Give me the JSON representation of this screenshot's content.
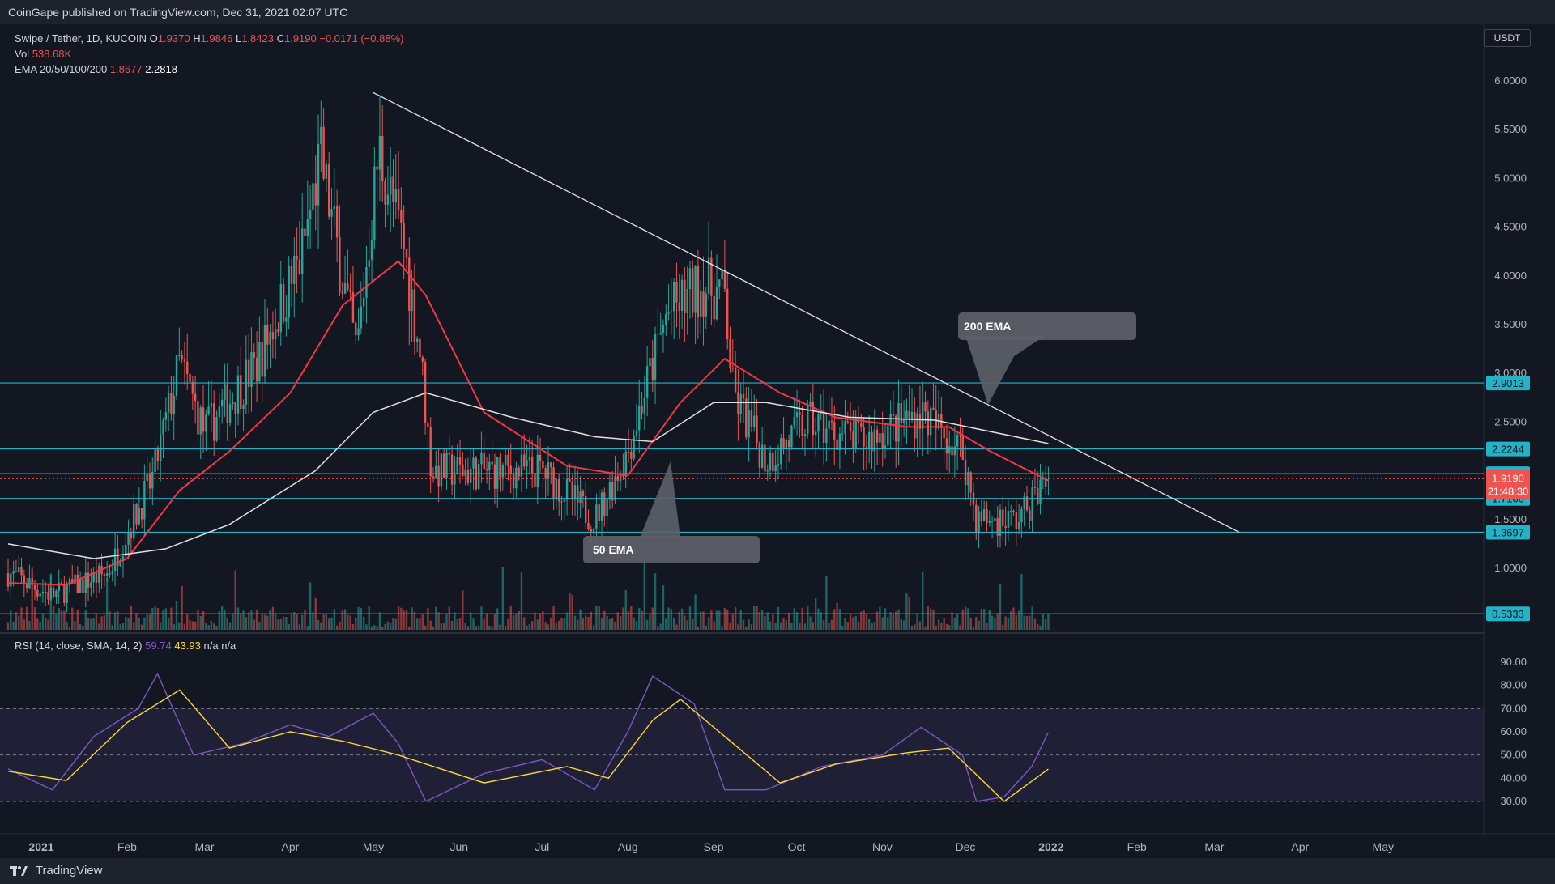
{
  "header": {
    "published": "CoinGape published on TradingView.com, Dec 31, 2021 02:07 UTC"
  },
  "footer": {
    "brand": "TradingView"
  },
  "legend": {
    "symbol": "Swipe / Tether, 1D, KUCOIN",
    "o_label": "O",
    "o": "1.9370",
    "h_label": "H",
    "h": "1.9846",
    "l_label": "L",
    "l": "1.8423",
    "c_label": "C",
    "c": "1.9190",
    "change": "−0.0171 (−0.88%)",
    "vol_label": "Vol",
    "vol": "538.68K",
    "ema_label": "EMA 20/50/100/200",
    "ema1": "1.8677",
    "ema2": "2.2818"
  },
  "rsi_legend": {
    "label": "RSI (14, close, SMA, 14, 2)",
    "rsi": "59.74",
    "sma": "43.93",
    "na1": "n/a",
    "na2": "n/a"
  },
  "currency": "USDT",
  "colors": {
    "up": "#26a69a",
    "down": "#ef5350",
    "ema50": "#f23645",
    "ema200": "#e0e0e0",
    "level": "#22b3c6",
    "rsi": "#7e57c2",
    "rsi_sma": "#fdd835",
    "bg": "#131722"
  },
  "chart_data": [
    {
      "type": "candlestick",
      "title": "Swipe / Tether, 1D, KUCOIN",
      "x_ticks": [
        "2021",
        "Feb",
        "Mar",
        "Apr",
        "May",
        "Jun",
        "Jul",
        "Aug",
        "Sep",
        "Oct",
        "Nov",
        "Dec",
        "2022",
        "Feb",
        "Mar",
        "Apr",
        "May"
      ],
      "y_ticks": [
        "6.0000",
        "5.5000",
        "5.0000",
        "4.5000",
        "4.0000",
        "3.5000",
        "3.0000",
        "2.5000",
        "2.0000",
        "1.5000",
        "1.0000"
      ],
      "ylim": [
        0.0,
        6.0
      ],
      "series": [
        {
          "name": "50 EMA",
          "points": [
            [
              "2020-12-20",
              0.85
            ],
            [
              "2021-01-10",
              0.83
            ],
            [
              "2021-02-01",
              1.1
            ],
            [
              "2021-02-20",
              1.8
            ],
            [
              "2021-03-10",
              2.2
            ],
            [
              "2021-04-01",
              2.8
            ],
            [
              "2021-04-20",
              3.7
            ],
            [
              "2021-05-10",
              4.15
            ],
            [
              "2021-05-20",
              3.8
            ],
            [
              "2021-06-10",
              2.6
            ],
            [
              "2021-07-10",
              2.05
            ],
            [
              "2021-08-01",
              1.95
            ],
            [
              "2021-08-20",
              2.7
            ],
            [
              "2021-09-05",
              3.15
            ],
            [
              "2021-09-25",
              2.8
            ],
            [
              "2021-10-15",
              2.55
            ],
            [
              "2021-11-10",
              2.45
            ],
            [
              "2021-11-25",
              2.45
            ],
            [
              "2021-12-10",
              2.2
            ],
            [
              "2021-12-31",
              1.9
            ]
          ]
        },
        {
          "name": "200 EMA",
          "points": [
            [
              "2020-12-20",
              1.25
            ],
            [
              "2021-01-20",
              1.1
            ],
            [
              "2021-02-15",
              1.2
            ],
            [
              "2021-03-10",
              1.45
            ],
            [
              "2021-04-10",
              2.0
            ],
            [
              "2021-05-01",
              2.6
            ],
            [
              "2021-05-20",
              2.8
            ],
            [
              "2021-06-20",
              2.55
            ],
            [
              "2021-07-20",
              2.35
            ],
            [
              "2021-08-10",
              2.3
            ],
            [
              "2021-09-01",
              2.7
            ],
            [
              "2021-09-20",
              2.7
            ],
            [
              "2021-10-20",
              2.55
            ],
            [
              "2021-11-20",
              2.52
            ],
            [
              "2021-12-31",
              2.28
            ]
          ]
        }
      ],
      "trendline": [
        [
          "2021-05-01",
          5.88
        ],
        [
          "2022-03-10",
          1.37
        ]
      ],
      "levels": [
        "2.9013",
        "2.2244",
        "1.9705",
        "1.7166",
        "1.3697",
        "0.5333"
      ],
      "current_price": "1.9190",
      "countdown": "21:48:30",
      "annotations": [
        "200 EMA",
        "50 EMA"
      ]
    },
    {
      "type": "line",
      "title": "RSI (14, close, SMA, 14, 2)",
      "y_ticks": [
        "90.00",
        "80.00",
        "70.00",
        "60.00",
        "50.00",
        "40.00",
        "30.00"
      ],
      "ylim": [
        25,
        90
      ],
      "bands": [
        30,
        50,
        70
      ],
      "series": [
        {
          "name": "RSI",
          "points": [
            [
              "2020-12-20",
              44
            ],
            [
              "2021-01-05",
              35
            ],
            [
              "2021-01-20",
              58
            ],
            [
              "2021-02-05",
              70
            ],
            [
              "2021-02-12",
              85
            ],
            [
              "2021-02-25",
              50
            ],
            [
              "2021-03-15",
              55
            ],
            [
              "2021-04-01",
              63
            ],
            [
              "2021-04-15",
              58
            ],
            [
              "2021-05-01",
              68
            ],
            [
              "2021-05-10",
              55
            ],
            [
              "2021-05-20",
              30
            ],
            [
              "2021-06-10",
              42
            ],
            [
              "2021-07-01",
              48
            ],
            [
              "2021-07-20",
              35
            ],
            [
              "2021-08-01",
              60
            ],
            [
              "2021-08-10",
              84
            ],
            [
              "2021-08-25",
              72
            ],
            [
              "2021-09-05",
              35
            ],
            [
              "2021-09-20",
              35
            ],
            [
              "2021-10-10",
              45
            ],
            [
              "2021-11-01",
              50
            ],
            [
              "2021-11-15",
              62
            ],
            [
              "2021-11-30",
              50
            ],
            [
              "2021-12-05",
              30
            ],
            [
              "2021-12-15",
              32
            ],
            [
              "2021-12-25",
              45
            ],
            [
              "2021-12-31",
              59.74
            ]
          ]
        },
        {
          "name": "SMA",
          "points": [
            [
              "2020-12-20",
              43
            ],
            [
              "2021-01-10",
              39
            ],
            [
              "2021-02-01",
              64
            ],
            [
              "2021-02-20",
              78
            ],
            [
              "2021-03-10",
              53
            ],
            [
              "2021-04-01",
              60
            ],
            [
              "2021-04-20",
              56
            ],
            [
              "2021-05-10",
              50
            ],
            [
              "2021-06-10",
              38
            ],
            [
              "2021-07-10",
              45
            ],
            [
              "2021-07-25",
              40
            ],
            [
              "2021-08-10",
              65
            ],
            [
              "2021-08-20",
              74
            ],
            [
              "2021-09-05",
              58
            ],
            [
              "2021-09-25",
              38
            ],
            [
              "2021-10-15",
              46
            ],
            [
              "2021-11-10",
              51
            ],
            [
              "2021-11-25",
              53
            ],
            [
              "2021-12-15",
              30
            ],
            [
              "2021-12-31",
              43.93
            ]
          ]
        }
      ]
    }
  ]
}
